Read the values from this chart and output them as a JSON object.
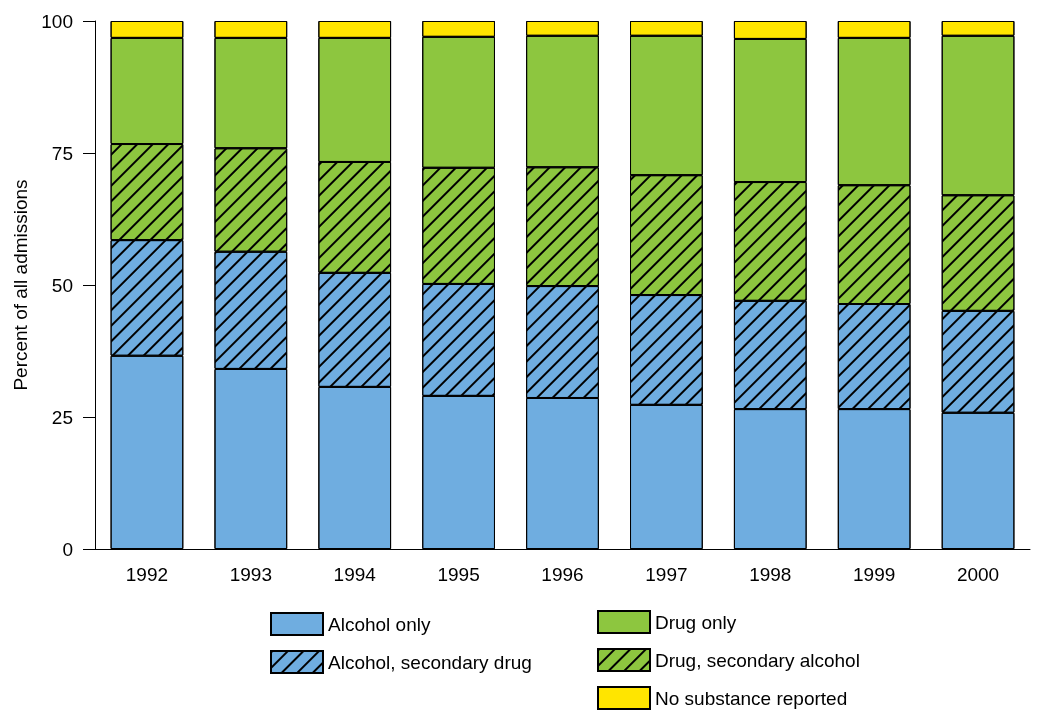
{
  "chart_data": {
    "type": "bar",
    "stacked": true,
    "ylabel": "Percent of all admissions",
    "categories": [
      "1992",
      "1993",
      "1994",
      "1995",
      "1996",
      "1997",
      "1998",
      "1999",
      "2000"
    ],
    "ylim": [
      0,
      100
    ],
    "yticks": [
      0,
      25,
      50,
      75,
      100
    ],
    "grid": false,
    "legend": "bottom",
    "series": [
      {
        "name": "Alcohol only",
        "color": "#6fade0",
        "values": [
          36.6,
          34.1,
          30.7,
          29.0,
          28.6,
          27.3,
          26.5,
          26.5,
          25.8
        ]
      },
      {
        "name": "Alcohol, secondary drug",
        "color": "#6fade0",
        "values": [
          21.9,
          22.2,
          21.6,
          21.2,
          21.2,
          20.8,
          20.5,
          19.9,
          19.3
        ]
      },
      {
        "name": "Drug, secondary alcohol",
        "color": "#8dc63f",
        "values": [
          18.2,
          19.6,
          21.0,
          22.0,
          22.5,
          22.7,
          22.5,
          22.5,
          21.9
        ]
      },
      {
        "name": "Drug only",
        "color": "#8dc63f",
        "values": [
          20.1,
          20.9,
          23.5,
          24.8,
          24.9,
          26.4,
          27.1,
          27.9,
          30.2
        ]
      },
      {
        "name": "No substance reported",
        "color": "#ffe500",
        "values": [
          3.2,
          3.2,
          3.2,
          3.0,
          2.8,
          2.8,
          3.4,
          3.2,
          2.8
        ]
      }
    ]
  }
}
